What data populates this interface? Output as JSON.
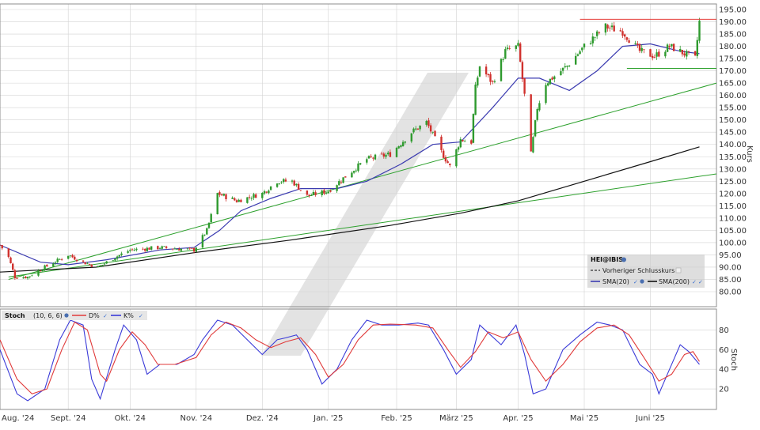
{
  "chart_data": [
    {
      "type": "candlestick",
      "symbol": "HEI@IBIS",
      "ylabel": "Kurs",
      "ylim": [
        75,
        197
      ],
      "yticks": [
        80,
        85,
        90,
        95,
        100,
        105,
        110,
        115,
        120,
        125,
        130,
        135,
        140,
        145,
        150,
        155,
        160,
        165,
        170,
        175,
        180,
        185,
        190,
        195
      ],
      "ytick_labels": [
        "80.00",
        "85.00",
        "90.00",
        "95.00",
        "100.00",
        "105.00",
        "110.00",
        "115.00",
        "120.00",
        "125.00",
        "130.00",
        "135.00",
        "140.00",
        "145.00",
        "150.00",
        "155.00",
        "160.00",
        "165.00",
        "170.00",
        "175.00",
        "180.00",
        "185.00",
        "190.00",
        "195.00"
      ],
      "x_range": [
        "2024-08-01",
        "2025-07-03"
      ],
      "x_labels": [
        {
          "date": "2024-08-01",
          "label": "Aug. '24"
        },
        {
          "date": "2024-09-02",
          "label": "Sept. '24"
        },
        {
          "date": "2024-10-01",
          "label": "Okt. '24"
        },
        {
          "date": "2024-11-01",
          "label": "Nov. '24"
        },
        {
          "date": "2024-12-02",
          "label": "Dez. '24"
        },
        {
          "date": "2025-01-02",
          "label": "Jan. '25"
        },
        {
          "date": "2025-02-03",
          "label": "Feb. '25"
        },
        {
          "date": "2025-03-03",
          "label": "März '25"
        },
        {
          "date": "2025-04-01",
          "label": "Apr. '25"
        },
        {
          "date": "2025-05-02",
          "label": "Mai '25"
        },
        {
          "date": "2025-06-02",
          "label": "Juni '25"
        }
      ],
      "price_anchors": [
        {
          "date": "2024-08-01",
          "close": 99
        },
        {
          "date": "2024-08-05",
          "close": 94
        },
        {
          "date": "2024-08-08",
          "close": 86
        },
        {
          "date": "2024-08-14",
          "close": 86
        },
        {
          "date": "2024-08-22",
          "close": 90
        },
        {
          "date": "2024-09-02",
          "close": 95
        },
        {
          "date": "2024-09-09",
          "close": 92
        },
        {
          "date": "2024-09-16",
          "close": 90
        },
        {
          "date": "2024-09-24",
          "close": 94
        },
        {
          "date": "2024-10-01",
          "close": 97
        },
        {
          "date": "2024-10-15",
          "close": 98
        },
        {
          "date": "2024-10-31",
          "close": 97
        },
        {
          "date": "2024-11-06",
          "close": 105
        },
        {
          "date": "2024-11-11",
          "close": 120
        },
        {
          "date": "2024-11-20",
          "close": 117
        },
        {
          "date": "2024-12-02",
          "close": 120
        },
        {
          "date": "2024-12-09",
          "close": 125
        },
        {
          "date": "2024-12-16",
          "close": 125
        },
        {
          "date": "2024-12-23",
          "close": 119
        },
        {
          "date": "2025-01-02",
          "close": 121
        },
        {
          "date": "2025-01-10",
          "close": 127
        },
        {
          "date": "2025-01-20",
          "close": 134
        },
        {
          "date": "2025-01-31",
          "close": 136
        },
        {
          "date": "2025-02-10",
          "close": 145
        },
        {
          "date": "2025-02-17",
          "close": 149
        },
        {
          "date": "2025-02-24",
          "close": 137
        },
        {
          "date": "2025-02-28",
          "close": 131
        },
        {
          "date": "2025-03-05",
          "close": 142
        },
        {
          "date": "2025-03-10",
          "close": 141
        },
        {
          "date": "2025-03-12",
          "close": 163
        },
        {
          "date": "2025-03-14",
          "close": 172
        },
        {
          "date": "2025-03-20",
          "close": 165
        },
        {
          "date": "2025-03-26",
          "close": 178
        },
        {
          "date": "2025-04-01",
          "close": 180
        },
        {
          "date": "2025-04-04",
          "close": 160
        },
        {
          "date": "2025-04-07",
          "close": 136
        },
        {
          "date": "2025-04-10",
          "close": 155
        },
        {
          "date": "2025-04-14",
          "close": 165
        },
        {
          "date": "2025-04-24",
          "close": 172
        },
        {
          "date": "2025-05-02",
          "close": 180
        },
        {
          "date": "2025-05-12",
          "close": 188
        },
        {
          "date": "2025-05-20",
          "close": 186
        },
        {
          "date": "2025-05-28",
          "close": 178
        },
        {
          "date": "2025-06-04",
          "close": 176
        },
        {
          "date": "2025-06-11",
          "close": 180
        },
        {
          "date": "2025-06-18",
          "close": 177
        },
        {
          "date": "2025-06-23",
          "close": 175
        },
        {
          "date": "2025-06-25",
          "close": 190
        }
      ],
      "sma20_anchors": [
        {
          "date": "2024-08-01",
          "value": 99
        },
        {
          "date": "2024-08-20",
          "value": 92
        },
        {
          "date": "2024-09-02",
          "value": 91
        },
        {
          "date": "2024-09-20",
          "value": 93
        },
        {
          "date": "2024-10-15",
          "value": 97
        },
        {
          "date": "2024-10-31",
          "value": 98
        },
        {
          "date": "2024-11-12",
          "value": 105
        },
        {
          "date": "2024-11-22",
          "value": 113
        },
        {
          "date": "2024-12-06",
          "value": 118
        },
        {
          "date": "2024-12-20",
          "value": 122
        },
        {
          "date": "2025-01-06",
          "value": 122
        },
        {
          "date": "2025-01-20",
          "value": 125
        },
        {
          "date": "2025-02-05",
          "value": 132
        },
        {
          "date": "2025-02-20",
          "value": 140
        },
        {
          "date": "2025-03-05",
          "value": 141
        },
        {
          "date": "2025-03-20",
          "value": 155
        },
        {
          "date": "2025-04-01",
          "value": 167
        },
        {
          "date": "2025-04-11",
          "value": 167
        },
        {
          "date": "2025-04-25",
          "value": 162
        },
        {
          "date": "2025-05-08",
          "value": 170
        },
        {
          "date": "2025-05-20",
          "value": 180
        },
        {
          "date": "2025-06-02",
          "value": 181
        },
        {
          "date": "2025-06-16",
          "value": 178
        },
        {
          "date": "2025-06-25",
          "value": 177
        }
      ],
      "sma200_anchors": [
        {
          "date": "2024-08-01",
          "value": 88
        },
        {
          "date": "2024-09-15",
          "value": 90
        },
        {
          "date": "2024-11-01",
          "value": 96
        },
        {
          "date": "2024-12-15",
          "value": 101
        },
        {
          "date": "2025-01-31",
          "value": 107
        },
        {
          "date": "2025-03-05",
          "value": 112
        },
        {
          "date": "2025-04-01",
          "value": 117
        },
        {
          "date": "2025-05-02",
          "value": 125
        },
        {
          "date": "2025-06-02",
          "value": 133
        },
        {
          "date": "2025-06-25",
          "value": 139
        }
      ],
      "trendlines": [
        {
          "name": "support-upper",
          "color": "#2ca02c",
          "from": {
            "date": "2024-08-05",
            "value": 85
          },
          "to": {
            "date": "2025-07-03",
            "value": 165
          }
        },
        {
          "name": "support-lower",
          "color": "#2ca02c",
          "from": {
            "date": "2024-08-05",
            "value": 86
          },
          "to": {
            "date": "2025-07-03",
            "value": 128
          }
        }
      ],
      "horizontal_lines": [
        {
          "name": "resistance",
          "color": "#e53935",
          "value": 191,
          "from": "2025-04-30",
          "to": "2025-07-03"
        },
        {
          "name": "support",
          "color": "#2ca02c",
          "value": 171,
          "from": "2025-05-22",
          "to": "2025-07-03"
        }
      ],
      "legend": {
        "title": "HEI@IBIS",
        "prev_close_label": "Vorheriger Schlusskurs",
        "sma20_label": "SMA(20)",
        "sma200_label": "SMA(200)",
        "placement": "bottom-right"
      },
      "colors": {
        "up": "#2e9a2e",
        "down": "#d0312d",
        "sma20": "#3b3bb0",
        "sma200": "#111111",
        "grid": "#d3d3d3",
        "watermark": "#d9d9d9"
      }
    },
    {
      "type": "line",
      "name": "Stoch",
      "params": "(10, 6, 6)",
      "ylabel": "Stoch",
      "ylim": [
        0,
        100
      ],
      "yticks": [
        20,
        40,
        60,
        80
      ],
      "ytick_labels": [
        "20",
        "40",
        "60",
        "80"
      ],
      "legend": [
        {
          "name": "D%",
          "color": "#e03a3a"
        },
        {
          "name": "K%",
          "color": "#3a3ad8"
        }
      ],
      "k_anchors": [
        {
          "date": "2024-08-01",
          "value": 60
        },
        {
          "date": "2024-08-09",
          "value": 15
        },
        {
          "date": "2024-08-14",
          "value": 8
        },
        {
          "date": "2024-08-22",
          "value": 20
        },
        {
          "date": "2024-08-29",
          "value": 70
        },
        {
          "date": "2024-09-03",
          "value": 90
        },
        {
          "date": "2024-09-09",
          "value": 85
        },
        {
          "date": "2024-09-13",
          "value": 30
        },
        {
          "date": "2024-09-17",
          "value": 10
        },
        {
          "date": "2024-09-24",
          "value": 60
        },
        {
          "date": "2024-09-28",
          "value": 85
        },
        {
          "date": "2024-10-04",
          "value": 70
        },
        {
          "date": "2024-10-09",
          "value": 35
        },
        {
          "date": "2024-10-15",
          "value": 45
        },
        {
          "date": "2024-10-23",
          "value": 45
        },
        {
          "date": "2024-10-31",
          "value": 55
        },
        {
          "date": "2024-11-04",
          "value": 70
        },
        {
          "date": "2024-11-11",
          "value": 90
        },
        {
          "date": "2024-11-18",
          "value": 85
        },
        {
          "date": "2024-11-25",
          "value": 70
        },
        {
          "date": "2024-12-02",
          "value": 55
        },
        {
          "date": "2024-12-09",
          "value": 70
        },
        {
          "date": "2024-12-13",
          "value": 72
        },
        {
          "date": "2024-12-18",
          "value": 75
        },
        {
          "date": "2024-12-23",
          "value": 60
        },
        {
          "date": "2024-12-30",
          "value": 25
        },
        {
          "date": "2025-01-06",
          "value": 40
        },
        {
          "date": "2025-01-13",
          "value": 70
        },
        {
          "date": "2025-01-20",
          "value": 90
        },
        {
          "date": "2025-01-27",
          "value": 85
        },
        {
          "date": "2025-02-04",
          "value": 85
        },
        {
          "date": "2025-02-13",
          "value": 87
        },
        {
          "date": "2025-02-18",
          "value": 85
        },
        {
          "date": "2025-02-25",
          "value": 60
        },
        {
          "date": "2025-03-03",
          "value": 35
        },
        {
          "date": "2025-03-10",
          "value": 50
        },
        {
          "date": "2025-03-14",
          "value": 85
        },
        {
          "date": "2025-03-19",
          "value": 75
        },
        {
          "date": "2025-03-24",
          "value": 65
        },
        {
          "date": "2025-03-31",
          "value": 85
        },
        {
          "date": "2025-04-04",
          "value": 55
        },
        {
          "date": "2025-04-08",
          "value": 15
        },
        {
          "date": "2025-04-14",
          "value": 20
        },
        {
          "date": "2025-04-22",
          "value": 60
        },
        {
          "date": "2025-04-30",
          "value": 75
        },
        {
          "date": "2025-05-08",
          "value": 88
        },
        {
          "date": "2025-05-14",
          "value": 85
        },
        {
          "date": "2025-05-20",
          "value": 80
        },
        {
          "date": "2025-05-28",
          "value": 45
        },
        {
          "date": "2025-06-03",
          "value": 35
        },
        {
          "date": "2025-06-06",
          "value": 15
        },
        {
          "date": "2025-06-11",
          "value": 40
        },
        {
          "date": "2025-06-16",
          "value": 65
        },
        {
          "date": "2025-06-20",
          "value": 58
        },
        {
          "date": "2025-06-25",
          "value": 45
        }
      ],
      "d_anchors": [
        {
          "date": "2024-08-01",
          "value": 70
        },
        {
          "date": "2024-08-09",
          "value": 30
        },
        {
          "date": "2024-08-16",
          "value": 15
        },
        {
          "date": "2024-08-23",
          "value": 20
        },
        {
          "date": "2024-08-30",
          "value": 60
        },
        {
          "date": "2024-09-05",
          "value": 88
        },
        {
          "date": "2024-09-11",
          "value": 80
        },
        {
          "date": "2024-09-17",
          "value": 35
        },
        {
          "date": "2024-09-20",
          "value": 28
        },
        {
          "date": "2024-09-26",
          "value": 60
        },
        {
          "date": "2024-10-02",
          "value": 78
        },
        {
          "date": "2024-10-08",
          "value": 65
        },
        {
          "date": "2024-10-14",
          "value": 45
        },
        {
          "date": "2024-10-22",
          "value": 45
        },
        {
          "date": "2024-11-01",
          "value": 52
        },
        {
          "date": "2024-11-08",
          "value": 75
        },
        {
          "date": "2024-11-15",
          "value": 88
        },
        {
          "date": "2024-11-22",
          "value": 82
        },
        {
          "date": "2024-11-29",
          "value": 70
        },
        {
          "date": "2024-12-06",
          "value": 62
        },
        {
          "date": "2024-12-13",
          "value": 68
        },
        {
          "date": "2024-12-20",
          "value": 72
        },
        {
          "date": "2024-12-27",
          "value": 55
        },
        {
          "date": "2025-01-02",
          "value": 32
        },
        {
          "date": "2025-01-09",
          "value": 45
        },
        {
          "date": "2025-01-16",
          "value": 70
        },
        {
          "date": "2025-01-23",
          "value": 85
        },
        {
          "date": "2025-01-31",
          "value": 86
        },
        {
          "date": "2025-02-12",
          "value": 85
        },
        {
          "date": "2025-02-20",
          "value": 82
        },
        {
          "date": "2025-02-27",
          "value": 60
        },
        {
          "date": "2025-03-05",
          "value": 42
        },
        {
          "date": "2025-03-12",
          "value": 58
        },
        {
          "date": "2025-03-18",
          "value": 78
        },
        {
          "date": "2025-03-25",
          "value": 72
        },
        {
          "date": "2025-04-01",
          "value": 78
        },
        {
          "date": "2025-04-07",
          "value": 50
        },
        {
          "date": "2025-04-14",
          "value": 28
        },
        {
          "date": "2025-04-22",
          "value": 45
        },
        {
          "date": "2025-04-30",
          "value": 68
        },
        {
          "date": "2025-05-08",
          "value": 82
        },
        {
          "date": "2025-05-16",
          "value": 85
        },
        {
          "date": "2025-05-23",
          "value": 75
        },
        {
          "date": "2025-05-30",
          "value": 52
        },
        {
          "date": "2025-06-06",
          "value": 28
        },
        {
          "date": "2025-06-12",
          "value": 35
        },
        {
          "date": "2025-06-18",
          "value": 55
        },
        {
          "date": "2025-06-22",
          "value": 58
        },
        {
          "date": "2025-06-25",
          "value": 48
        }
      ]
    }
  ]
}
